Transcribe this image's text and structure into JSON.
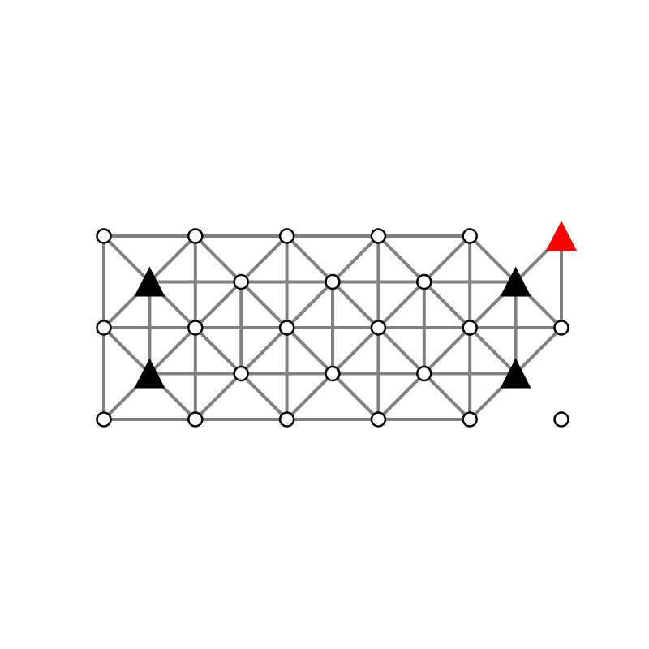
{
  "graph": {
    "nodes": [
      {
        "id": "r0c0",
        "col": 0,
        "row": 0,
        "shape": "circle"
      },
      {
        "id": "r0c1",
        "col": 1,
        "row": 0,
        "shape": "circle"
      },
      {
        "id": "r0c2",
        "col": 2,
        "row": 0,
        "shape": "circle"
      },
      {
        "id": "r0c3",
        "col": 3,
        "row": 0,
        "shape": "circle"
      },
      {
        "id": "r0c4",
        "col": 4,
        "row": 0,
        "shape": "circle"
      },
      {
        "id": "r0c5",
        "col": 5,
        "row": 0,
        "shape": "triangle",
        "color": "#ff0000"
      },
      {
        "id": "r1c0",
        "col": 0,
        "row": 1,
        "shape": "circle"
      },
      {
        "id": "r1c1",
        "col": 1,
        "row": 1,
        "shape": "circle"
      },
      {
        "id": "r1c2",
        "col": 2,
        "row": 1,
        "shape": "circle"
      },
      {
        "id": "r1c3",
        "col": 3,
        "row": 1,
        "shape": "circle"
      },
      {
        "id": "r1c4",
        "col": 4,
        "row": 1,
        "shape": "circle"
      },
      {
        "id": "r1c5",
        "col": 5,
        "row": 1,
        "shape": "circle"
      },
      {
        "id": "r2c0",
        "col": 0,
        "row": 2,
        "shape": "circle"
      },
      {
        "id": "r2c1",
        "col": 1,
        "row": 2,
        "shape": "circle"
      },
      {
        "id": "r2c2",
        "col": 2,
        "row": 2,
        "shape": "circle"
      },
      {
        "id": "r2c3",
        "col": 3,
        "row": 2,
        "shape": "circle"
      },
      {
        "id": "r2c4",
        "col": 4,
        "row": 2,
        "shape": "circle"
      },
      {
        "id": "r2c5",
        "col": 5,
        "row": 2,
        "shape": "circle"
      },
      {
        "id": "m0c0",
        "col": 0.5,
        "row": 0.5,
        "shape": "triangle",
        "color": "#000000"
      },
      {
        "id": "m0c1",
        "col": 1.5,
        "row": 0.5,
        "shape": "circle"
      },
      {
        "id": "m0c2",
        "col": 2.5,
        "row": 0.5,
        "shape": "circle"
      },
      {
        "id": "m0c3",
        "col": 3.5,
        "row": 0.5,
        "shape": "circle"
      },
      {
        "id": "m0c4",
        "col": 4.5,
        "row": 0.5,
        "shape": "triangle",
        "color": "#000000"
      },
      {
        "id": "m1c0",
        "col": 0.5,
        "row": 1.5,
        "shape": "triangle",
        "color": "#000000"
      },
      {
        "id": "m1c1",
        "col": 1.5,
        "row": 1.5,
        "shape": "circle"
      },
      {
        "id": "m1c2",
        "col": 2.5,
        "row": 1.5,
        "shape": "circle"
      },
      {
        "id": "m1c3",
        "col": 3.5,
        "row": 1.5,
        "shape": "circle"
      },
      {
        "id": "m1c4",
        "col": 4.5,
        "row": 1.5,
        "shape": "triangle",
        "color": "#000000"
      }
    ],
    "edges": [
      [
        "r0c0",
        "r0c1"
      ],
      [
        "r0c1",
        "r0c2"
      ],
      [
        "r0c2",
        "r0c3"
      ],
      [
        "r0c3",
        "r0c4"
      ],
      [
        "r1c0",
        "r1c1"
      ],
      [
        "r1c1",
        "r1c2"
      ],
      [
        "r1c2",
        "r1c3"
      ],
      [
        "r1c3",
        "r1c4"
      ],
      [
        "r1c4",
        "r1c5"
      ],
      [
        "r2c0",
        "r2c1"
      ],
      [
        "r2c1",
        "r2c2"
      ],
      [
        "r2c2",
        "r2c3"
      ],
      [
        "r2c3",
        "r2c4"
      ],
      [
        "r0c0",
        "r1c0"
      ],
      [
        "r1c0",
        "r2c0"
      ],
      [
        "r0c1",
        "r1c1"
      ],
      [
        "r1c1",
        "r2c1"
      ],
      [
        "r0c2",
        "r1c2"
      ],
      [
        "r1c2",
        "r2c2"
      ],
      [
        "r0c3",
        "r1c3"
      ],
      [
        "r1c3",
        "r2c3"
      ],
      [
        "r0c4",
        "r1c4"
      ],
      [
        "r1c4",
        "r2c4"
      ],
      [
        "r0c5",
        "r1c5"
      ],
      [
        "m0c0",
        "m0c1"
      ],
      [
        "m0c1",
        "m0c2"
      ],
      [
        "m0c2",
        "m0c3"
      ],
      [
        "m0c3",
        "m0c4"
      ],
      [
        "m1c0",
        "m1c1"
      ],
      [
        "m1c1",
        "m1c2"
      ],
      [
        "m1c2",
        "m1c3"
      ],
      [
        "m1c3",
        "m1c4"
      ],
      [
        "m0c0",
        "m1c0"
      ],
      [
        "m0c1",
        "m1c1"
      ],
      [
        "m0c2",
        "m1c2"
      ],
      [
        "m0c3",
        "m1c3"
      ],
      [
        "m0c4",
        "m1c4"
      ],
      [
        "m0c0",
        "r0c0"
      ],
      [
        "m0c0",
        "r0c1"
      ],
      [
        "m0c0",
        "r1c0"
      ],
      [
        "m0c0",
        "r1c1"
      ],
      [
        "m0c1",
        "r0c1"
      ],
      [
        "m0c1",
        "r0c2"
      ],
      [
        "m0c1",
        "r1c1"
      ],
      [
        "m0c1",
        "r1c2"
      ],
      [
        "m0c2",
        "r0c2"
      ],
      [
        "m0c2",
        "r0c3"
      ],
      [
        "m0c2",
        "r1c2"
      ],
      [
        "m0c2",
        "r1c3"
      ],
      [
        "m0c3",
        "r0c3"
      ],
      [
        "m0c3",
        "r0c4"
      ],
      [
        "m0c3",
        "r1c3"
      ],
      [
        "m0c3",
        "r1c4"
      ],
      [
        "m0c4",
        "r0c4"
      ],
      [
        "m0c4",
        "r0c5"
      ],
      [
        "m0c4",
        "r1c4"
      ],
      [
        "m0c4",
        "r1c5"
      ],
      [
        "m1c0",
        "r1c0"
      ],
      [
        "m1c0",
        "r1c1"
      ],
      [
        "m1c0",
        "r2c0"
      ],
      [
        "m1c0",
        "r2c1"
      ],
      [
        "m1c1",
        "r1c1"
      ],
      [
        "m1c1",
        "r1c2"
      ],
      [
        "m1c1",
        "r2c1"
      ],
      [
        "m1c1",
        "r2c2"
      ],
      [
        "m1c2",
        "r1c2"
      ],
      [
        "m1c2",
        "r1c3"
      ],
      [
        "m1c2",
        "r2c2"
      ],
      [
        "m1c2",
        "r2c3"
      ],
      [
        "m1c3",
        "r1c3"
      ],
      [
        "m1c3",
        "r1c4"
      ],
      [
        "m1c3",
        "r2c3"
      ],
      [
        "m1c3",
        "r2c4"
      ],
      [
        "m1c4",
        "r1c4"
      ],
      [
        "m1c4",
        "r1c5"
      ],
      [
        "m1c4",
        "r2c4"
      ]
    ],
    "edge_color": "#808080",
    "node_fill": "#ffffff",
    "node_stroke": "#000000"
  }
}
